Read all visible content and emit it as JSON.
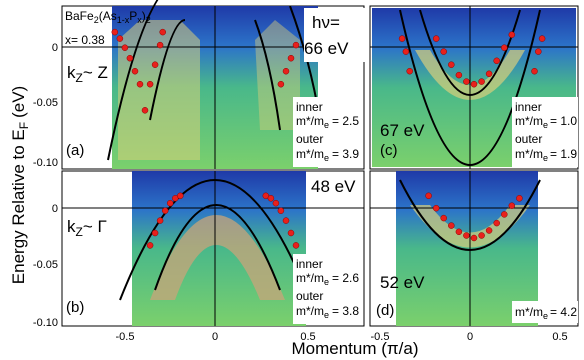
{
  "figure": {
    "ylabel": "Energy Relative to E",
    "ylabel_sub": "F",
    "ylabel_unit": "(eV)",
    "xlabel": "Momentum (π/a)"
  },
  "chart_data": [
    {
      "panel": "a",
      "type": "scatter",
      "compound_main": "BaFe",
      "compound_sub1": "2",
      "compound_mid": "(As",
      "compound_sub2": "1-x",
      "compound_mid2": "P",
      "compound_sub3": "x",
      "compound_end": ")",
      "compound_end_sub": "2",
      "doping": "x= 0.38",
      "kz_label": "k",
      "kz_sub": "Z",
      "kz_point": "~ Z",
      "label": "(a)",
      "inner_label": "inner",
      "inner_mass_eq": "= 2.5",
      "outer_label": "outer",
      "outer_mass_eq": "= 3.9",
      "xlim": [
        -0.65,
        0.55
      ],
      "ylim": [
        -0.105,
        0.02
      ],
      "yticks": [
        "0",
        "-0.05",
        "-0.10"
      ],
      "series": [
        {
          "name": "inner",
          "x": [
            -0.44,
            -0.42,
            -0.4,
            -0.38,
            -0.36,
            -0.34,
            0.22,
            0.24,
            0.26,
            0.28
          ],
          "y": [
            0.0,
            -0.005,
            -0.012,
            -0.02,
            -0.03,
            -0.04,
            -0.04,
            -0.03,
            -0.02,
            -0.01
          ]
        },
        {
          "name": "outer",
          "x": [
            -0.32,
            -0.3,
            -0.28,
            -0.26,
            -0.25
          ],
          "y": [
            -0.06,
            -0.04,
            -0.025,
            -0.01,
            0.0
          ]
        }
      ]
    },
    {
      "panel": "c",
      "type": "scatter",
      "photon_label": "hν=",
      "photon_energy": "66 eV",
      "energy_label": "67 eV",
      "label": "(c)",
      "inner_label": "inner",
      "inner_mass_eq": "= 1.0",
      "outer_label": "outer",
      "outer_mass_eq": "= 1.9",
      "xlim": [
        -0.55,
        0.55
      ],
      "ylim": [
        -0.105,
        0.02
      ],
      "series": [
        {
          "name": "inner",
          "x": [
            -0.2,
            -0.16,
            -0.12,
            -0.08,
            -0.04,
            0.0,
            0.04,
            0.08,
            0.12,
            0.16,
            0.2
          ],
          "y": [
            -0.005,
            -0.015,
            -0.025,
            -0.033,
            -0.038,
            -0.04,
            -0.038,
            -0.032,
            -0.022,
            -0.012,
            -0.002
          ]
        },
        {
          "name": "outer",
          "x": [
            -0.38,
            -0.36,
            -0.34,
            0.32,
            0.34,
            0.36
          ],
          "y": [
            -0.005,
            -0.015,
            -0.03,
            -0.03,
            -0.015,
            -0.005
          ]
        }
      ]
    },
    {
      "panel": "b",
      "type": "scatter",
      "kz_label": "k",
      "kz_sub": "Z",
      "kz_point": "~ Γ",
      "energy_label": "48 eV",
      "label": "(b)",
      "inner_label": "inner",
      "inner_mass_eq": "= 2.6",
      "outer_label": "outer",
      "outer_mass_eq": "= 3.8",
      "xticks": [
        "-0.5",
        "0",
        "0.5"
      ],
      "yticks": [
        "0",
        "-0.05",
        "-0.10"
      ],
      "xlim": [
        -0.65,
        0.55
      ],
      "ylim": [
        -0.105,
        0.02
      ],
      "series": [
        {
          "name": "band",
          "x": [
            -0.3,
            -0.28,
            -0.26,
            -0.24,
            -0.22,
            -0.2,
            -0.18,
            0.16,
            0.18,
            0.2,
            0.22,
            0.24,
            0.26,
            0.28,
            0.3
          ],
          "y": [
            -0.04,
            -0.03,
            -0.02,
            -0.012,
            -0.006,
            -0.002,
            0.0,
            0.0,
            -0.002,
            -0.006,
            -0.012,
            -0.02,
            -0.03,
            -0.04,
            -0.05
          ]
        }
      ]
    },
    {
      "panel": "d",
      "type": "scatter",
      "energy_label": "52 eV",
      "label": "(d)",
      "mass_eq": "= 4.2",
      "xticks": [
        "-0.5",
        "0",
        "0.5"
      ],
      "xlim": [
        -0.55,
        0.55
      ],
      "ylim": [
        -0.105,
        0.02
      ],
      "series": [
        {
          "name": "band",
          "x": [
            -0.24,
            -0.2,
            -0.16,
            -0.12,
            -0.08,
            -0.04,
            0.0,
            0.04,
            0.08,
            0.12,
            0.16,
            0.2,
            0.24
          ],
          "y": [
            0.0,
            -0.01,
            -0.018,
            -0.024,
            -0.029,
            -0.032,
            -0.034,
            -0.032,
            -0.028,
            -0.022,
            -0.015,
            -0.008,
            -0.002
          ]
        }
      ]
    }
  ]
}
